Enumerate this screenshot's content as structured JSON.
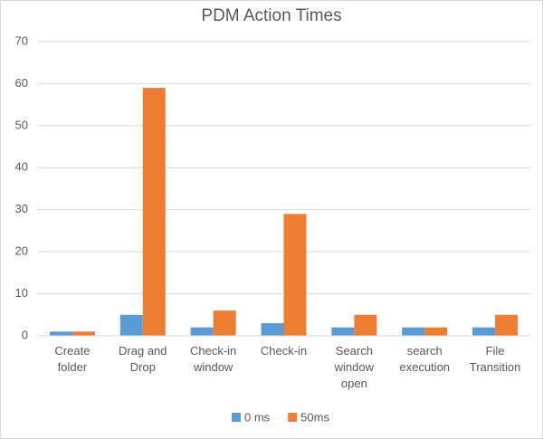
{
  "chart_data": {
    "type": "bar",
    "title": "PDM Action Times",
    "categories": [
      "Create folder",
      "Drag and Drop",
      "Check-in window",
      "Check-in",
      "Search window open",
      "search execution",
      "File Transition"
    ],
    "series": [
      {
        "name": "0 ms",
        "color": "#5b9bd5",
        "values": [
          1,
          5,
          2,
          3,
          2,
          2,
          2
        ]
      },
      {
        "name": "50ms",
        "color": "#ed7d31",
        "values": [
          1,
          59,
          6,
          29,
          5,
          2,
          5
        ]
      }
    ],
    "ylim": [
      0,
      70
    ],
    "yticks": [
      0,
      10,
      20,
      30,
      40,
      50,
      60,
      70
    ],
    "grid": true,
    "legend": "bottom"
  }
}
